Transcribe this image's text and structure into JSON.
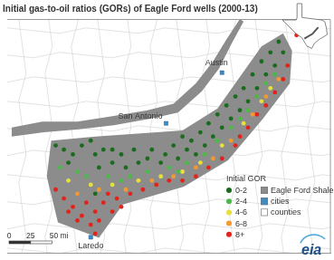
{
  "chart_data": {
    "type": "scatter",
    "title": "Initial gas-to-oil ratios (GORs) of Eagle Ford wells (2000-13)",
    "legend_title": "Initial GOR",
    "legend": "lower right",
    "grid": false,
    "tick_labels": false,
    "xlim": [
      -100.62,
      -96.28
    ],
    "ylim": [
      27.25,
      31.17
    ],
    "logo": "eia",
    "scale_bar": {
      "ticks": [
        0,
        25,
        {
          "value": 50,
          "label": "50 mi"
        }
      ]
    },
    "series": [
      {
        "name": "0-2",
        "type": "scatter",
        "marker": "circle",
        "color": "#1b6b1f",
        "values": [
          [
            -99.97,
            29.05
          ],
          [
            -99.86,
            28.98
          ],
          [
            -99.74,
            28.9
          ],
          [
            -99.8,
            28.76
          ],
          [
            -99.62,
            29.05
          ],
          [
            -99.5,
            29.13
          ],
          [
            -99.44,
            28.9
          ],
          [
            -99.33,
            28.98
          ],
          [
            -99.39,
            28.68
          ],
          [
            -99.21,
            28.98
          ],
          [
            -99.21,
            28.76
          ],
          [
            -99.09,
            28.9
          ],
          [
            -99.03,
            28.68
          ],
          [
            -98.92,
            28.98
          ],
          [
            -98.86,
            28.76
          ],
          [
            -98.74,
            28.83
          ],
          [
            -98.68,
            28.98
          ],
          [
            -98.56,
            28.76
          ],
          [
            -98.5,
            28.9
          ],
          [
            -98.39,
            29.05
          ],
          [
            -98.33,
            28.83
          ],
          [
            -98.27,
            29.2
          ],
          [
            -98.21,
            28.98
          ],
          [
            -98.15,
            29.13
          ],
          [
            -98.09,
            28.9
          ],
          [
            -98.03,
            29.27
          ],
          [
            -97.97,
            29.05
          ],
          [
            -97.92,
            29.42
          ],
          [
            -97.86,
            29.2
          ],
          [
            -97.8,
            29.57
          ],
          [
            -97.74,
            29.35
          ],
          [
            -97.68,
            29.72
          ],
          [
            -97.62,
            29.5
          ],
          [
            -97.56,
            29.87
          ],
          [
            -97.5,
            29.64
          ],
          [
            -97.45,
            30.01
          ],
          [
            -97.39,
            29.79
          ],
          [
            -97.33,
            30.24
          ],
          [
            -97.27,
            30.01
          ],
          [
            -97.21,
            30.46
          ],
          [
            -97.15,
            30.24
          ],
          [
            -97.09,
            30.61
          ],
          [
            -97.03,
            30.39
          ],
          [
            -96.98,
            30.79
          ],
          [
            -99.44,
            28.24
          ],
          [
            -96.92,
            30.61
          ]
        ]
      },
      {
        "name": "2-4",
        "type": "scatter",
        "marker": "circle",
        "color": "#4cb848",
        "values": [
          [
            -99.91,
            28.68
          ],
          [
            -99.56,
            28.53
          ],
          [
            -99.27,
            28.53
          ],
          [
            -98.97,
            28.53
          ],
          [
            -98.74,
            28.61
          ],
          [
            -98.45,
            28.68
          ],
          [
            -98.21,
            28.76
          ],
          [
            -97.97,
            28.9
          ],
          [
            -97.8,
            29.13
          ],
          [
            -97.62,
            29.35
          ],
          [
            -97.5,
            29.5
          ],
          [
            -97.39,
            29.64
          ],
          [
            -97.27,
            29.87
          ],
          [
            -97.15,
            30.09
          ],
          [
            -97.03,
            30.24
          ],
          [
            -99.68,
            28.61
          ],
          [
            -99.09,
            28.46
          ],
          [
            -98.33,
            28.61
          ]
        ]
      },
      {
        "name": "4-6",
        "type": "scatter",
        "marker": "circle",
        "color": "#e6df3c",
        "values": [
          [
            -99.8,
            28.46
          ],
          [
            -99.5,
            28.39
          ],
          [
            -99.21,
            28.39
          ],
          [
            -98.86,
            28.46
          ],
          [
            -98.56,
            28.53
          ],
          [
            -98.27,
            28.61
          ],
          [
            -98.03,
            28.76
          ],
          [
            -97.74,
            29.05
          ],
          [
            -97.45,
            29.42
          ],
          [
            -97.21,
            29.79
          ],
          [
            -97.09,
            30.01
          ]
        ]
      },
      {
        "name": "6-8",
        "type": "scatter",
        "marker": "circle",
        "color": "#f29a2e",
        "values": [
          [
            -99.68,
            28.24
          ],
          [
            -99.39,
            28.31
          ],
          [
            -99.03,
            28.31
          ],
          [
            -98.68,
            28.46
          ],
          [
            -98.39,
            28.53
          ],
          [
            -98.09,
            28.68
          ],
          [
            -97.86,
            28.83
          ],
          [
            -97.62,
            29.13
          ],
          [
            -97.33,
            29.57
          ],
          [
            -97.15,
            29.87
          ],
          [
            -96.98,
            30.16
          ]
        ]
      },
      {
        "name": "8+",
        "type": "scatter",
        "marker": "circle",
        "color": "#e3231b",
        "values": [
          [
            -99.97,
            28.31
          ],
          [
            -99.86,
            28.16
          ],
          [
            -99.74,
            28.02
          ],
          [
            -99.62,
            27.87
          ],
          [
            -99.5,
            27.72
          ],
          [
            -99.68,
            27.79
          ],
          [
            -99.8,
            27.94
          ],
          [
            -99.56,
            28.09
          ],
          [
            -99.44,
            27.94
          ],
          [
            -99.33,
            28.09
          ],
          [
            -99.39,
            27.79
          ],
          [
            -99.27,
            28.24
          ],
          [
            -99.44,
            27.57
          ],
          [
            -99.15,
            28.16
          ],
          [
            -98.97,
            28.24
          ],
          [
            -98.8,
            28.31
          ],
          [
            -98.62,
            28.39
          ],
          [
            -98.45,
            28.46
          ],
          [
            -98.27,
            28.46
          ],
          [
            -98.09,
            28.53
          ],
          [
            -97.92,
            28.68
          ],
          [
            -97.74,
            28.83
          ],
          [
            -97.56,
            29.05
          ],
          [
            -97.5,
            29.2
          ],
          [
            -97.39,
            29.35
          ],
          [
            -97.27,
            29.57
          ],
          [
            -97.15,
            29.72
          ],
          [
            -97.03,
            29.94
          ],
          [
            -96.92,
            30.16
          ],
          [
            -96.86,
            30.39
          ],
          [
            -96.74,
            30.9
          ],
          [
            -99.21,
            27.94
          ],
          [
            -99.09,
            28.02
          ]
        ]
      },
      {
        "name": "Eagle Ford Shale",
        "type": "area",
        "marker": "square",
        "color": "#8c8c8c",
        "values": [
          [
            [
              -100.03,
              29.13
            ],
            [
              -99.44,
              29.2
            ],
            [
              -98.27,
              29.3
            ],
            [
              -97.8,
              29.67
            ],
            [
              -97.21,
              30.71
            ],
            [
              -96.92,
              30.93
            ],
            [
              -96.8,
              30.64
            ],
            [
              -96.83,
              30.09
            ],
            [
              -97.19,
              29.5
            ],
            [
              -97.66,
              28.8
            ],
            [
              -98.25,
              28.36
            ],
            [
              -99.07,
              28.06
            ],
            [
              -99.39,
              27.5
            ],
            [
              -99.94,
              27.76
            ],
            [
              -100.09,
              28.53
            ]
          ],
          [
            [
              -100.56,
              29.35
            ],
            [
              -100.15,
              29.45
            ],
            [
              -99.68,
              29.45
            ],
            [
              -99.21,
              29.54
            ],
            [
              -98.74,
              29.64
            ],
            [
              -98.39,
              29.75
            ],
            [
              -98.09,
              30.09
            ],
            [
              -97.86,
              30.46
            ],
            [
              -97.68,
              30.83
            ],
            [
              -97.5,
              31.17
            ],
            [
              -97.45,
              31.13
            ],
            [
              -97.61,
              30.76
            ],
            [
              -97.78,
              30.34
            ],
            [
              -98.01,
              29.96
            ],
            [
              -98.33,
              29.6
            ],
            [
              -98.7,
              29.5
            ],
            [
              -99.19,
              29.39
            ],
            [
              -99.66,
              29.32
            ],
            [
              -100.13,
              29.27
            ],
            [
              -100.56,
              29.2
            ]
          ]
        ]
      },
      {
        "name": "cities",
        "type": "point",
        "marker": "square",
        "color": "#3d8cc6",
        "values": [
          [
            -97.74,
            30.27
          ],
          [
            -98.49,
            29.42
          ],
          [
            -99.5,
            27.51
          ]
        ],
        "labels": [
          "Austin",
          "San Antonio",
          "Laredo"
        ]
      },
      {
        "name": "counties",
        "type": "boundary",
        "marker": "square",
        "color": "#ffffff",
        "values": []
      }
    ]
  }
}
